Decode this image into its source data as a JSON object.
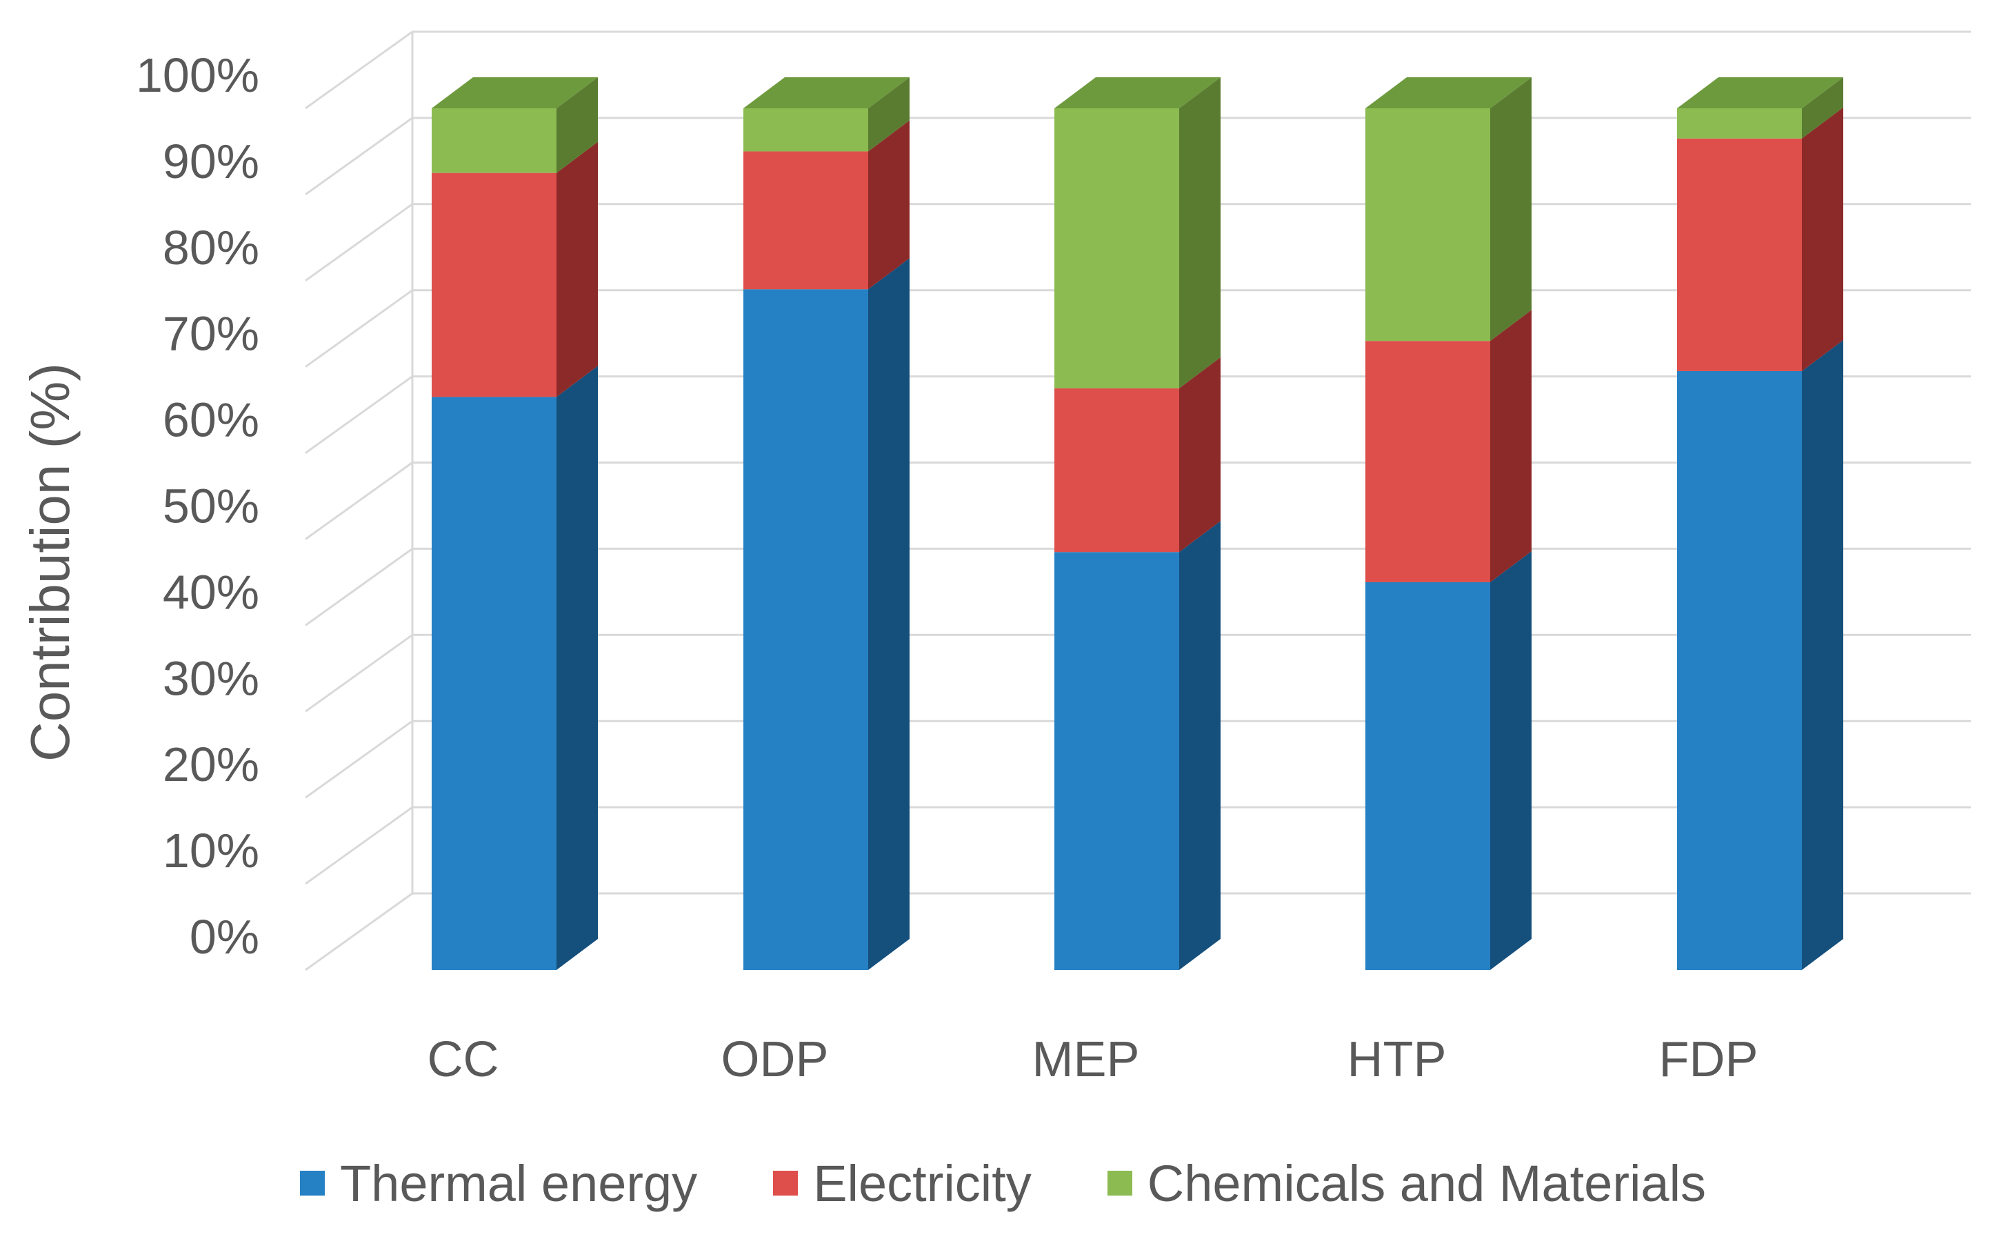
{
  "chart_data": {
    "type": "bar",
    "stacked": true,
    "percent_stacked": true,
    "style": "3d-column",
    "categories": [
      "CC",
      "ODP",
      "MEP",
      "HTP",
      "FDP"
    ],
    "series": [
      {
        "name": "Thermal energy",
        "values": [
          66.5,
          79,
          48.5,
          45,
          69.5
        ],
        "color": "#2581C4",
        "side_color": "#154F7C",
        "top_color": "#1C6AA3"
      },
      {
        "name": "Electricity",
        "values": [
          26,
          16,
          19,
          28,
          27
        ],
        "color": "#DE4F4B",
        "side_color": "#8C2A29",
        "top_color": "#B33B38"
      },
      {
        "name": "Chemicals and Materials",
        "values": [
          7.5,
          5,
          32.5,
          27,
          3.5
        ],
        "color": "#8CBB51",
        "side_color": "#5A7C31",
        "top_color": "#6E9A3E"
      }
    ],
    "ylabel": "Contribution (%)",
    "xlabel": "",
    "ylim": [
      0,
      100
    ],
    "yticks": [
      "0%",
      "10%",
      "20%",
      "30%",
      "40%",
      "50%",
      "60%",
      "70%",
      "80%",
      "90%",
      "100%"
    ],
    "grid": true,
    "legend_position": "bottom"
  }
}
